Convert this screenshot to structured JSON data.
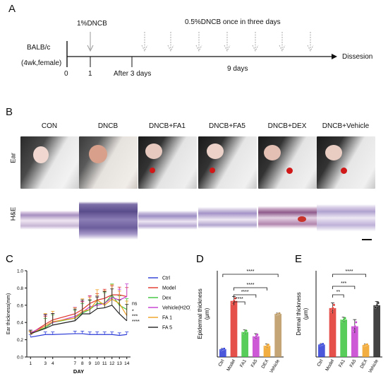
{
  "panel_a": {
    "letter": "A",
    "mouse_label_1": "BALB/c",
    "mouse_label_2": "(4wk,female)",
    "sensitization": "1%DNCB",
    "challenge": "0.5%DNCB once in three days",
    "tick_0": "0",
    "tick_1": "1",
    "after_label": "After 3 days",
    "duration": "9 days",
    "end_label": "Dissesion"
  },
  "panel_b": {
    "letter": "B",
    "columns": [
      "CON",
      "DNCB",
      "DNCB+FA1",
      "DNCB+FA5",
      "DNCB+DEX",
      "DNCB+Vehicle"
    ],
    "row_ear": "Ear",
    "row_he": "H&E"
  },
  "colors": {
    "ctrl": "#2b3bd6",
    "model": "#e0322a",
    "dex": "#3cc43c",
    "vehicle": "#c43cd0",
    "fa1": "#f0a020",
    "fa5": "#222222",
    "bar_vehicle": "#b9955e"
  },
  "chart_data": [
    {
      "type": "line",
      "panel": "C",
      "xlabel": "DAY",
      "ylabel": "Ear thickness(mm)",
      "x": [
        1,
        3,
        4,
        7,
        8,
        9,
        10,
        11,
        12,
        13,
        14
      ],
      "xticks": [
        "1",
        "3",
        "4",
        "7",
        "8",
        "9",
        "10",
        "11",
        "12",
        "13",
        "14"
      ],
      "ylim": [
        0.0,
        1.0
      ],
      "yticks": [
        "0.0",
        "0.2",
        "0.4",
        "0.6",
        "0.8",
        "1.0"
      ],
      "series": [
        {
          "name": "Ctrl",
          "color_key": "ctrl",
          "values": [
            0.23,
            0.26,
            0.26,
            0.27,
            0.27,
            0.26,
            0.26,
            0.26,
            0.26,
            0.25,
            0.26
          ]
        },
        {
          "name": "Model",
          "color_key": "model",
          "values": [
            0.27,
            0.38,
            0.43,
            0.5,
            0.55,
            0.62,
            0.66,
            0.68,
            0.72,
            0.72,
            0.7
          ]
        },
        {
          "name": "Dex",
          "color_key": "dex",
          "values": [
            0.27,
            0.34,
            0.4,
            0.45,
            0.51,
            0.55,
            0.62,
            0.62,
            0.72,
            0.6,
            0.55
          ]
        },
        {
          "name": "Vehicle(H2O)",
          "color_key": "vehicle",
          "values": [
            0.28,
            0.36,
            0.4,
            0.47,
            0.52,
            0.58,
            0.6,
            0.62,
            0.69,
            0.66,
            0.7
          ]
        },
        {
          "name": "FA 1",
          "color_key": "fa1",
          "values": [
            0.26,
            0.36,
            0.41,
            0.45,
            0.53,
            0.55,
            0.66,
            0.6,
            0.67,
            0.62,
            0.48
          ]
        },
        {
          "name": "FA 5",
          "color_key": "fa5",
          "values": [
            0.27,
            0.33,
            0.37,
            0.42,
            0.5,
            0.5,
            0.56,
            0.57,
            0.6,
            0.5,
            0.42
          ]
        }
      ],
      "annotations": [
        "ns",
        "*",
        "***",
        "****"
      ]
    },
    {
      "type": "bar",
      "panel": "D",
      "ylabel": "Epidermal thickness\n(μm)",
      "categories": [
        "Ctrl",
        "Model",
        "FA1",
        "FA5",
        "DEX",
        "Vehicle"
      ],
      "values": [
        45,
        325,
        145,
        120,
        65,
        250
      ],
      "errors": [
        5,
        25,
        12,
        15,
        10,
        5
      ],
      "color_keys": [
        "ctrl",
        "model",
        "dex",
        "vehicle",
        "fa1",
        "bar_vehicle"
      ],
      "ylim": [
        0,
        500
      ],
      "significance": [
        "****",
        "****",
        "****",
        "****"
      ]
    },
    {
      "type": "bar",
      "panel": "E",
      "ylabel": "Dermal thickness\n(μm)",
      "categories": [
        "Ctrl",
        "Model",
        "FA1",
        "FA5",
        "DEX",
        "Vehicle"
      ],
      "values": [
        130,
        510,
        390,
        320,
        125,
        540
      ],
      "errors": [
        10,
        55,
        25,
        70,
        10,
        40
      ],
      "color_keys": [
        "ctrl",
        "model",
        "dex",
        "vehicle",
        "fa1",
        "fa5"
      ],
      "ylim": [
        0,
        900
      ],
      "significance": [
        "**",
        "***",
        "****"
      ]
    }
  ]
}
